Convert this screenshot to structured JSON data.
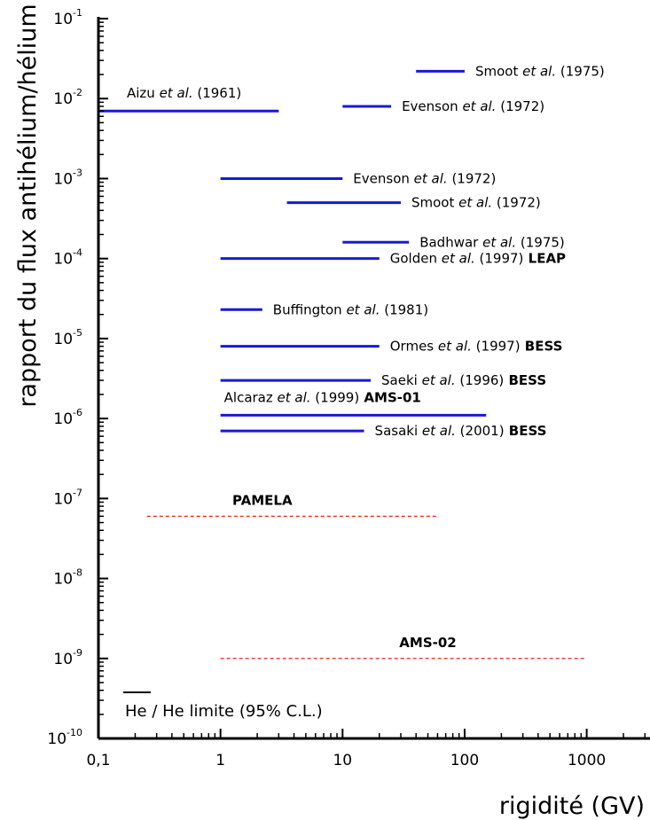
{
  "chart_data": {
    "type": "line",
    "ylabel": "rapport du flux antihélium/hélium",
    "xlabel": "rigidité (GV)",
    "xscale": "log",
    "yscale": "log",
    "xlim": [
      0.1,
      3300
    ],
    "ylim": [
      1e-10,
      0.1
    ],
    "x_ticks": [
      {
        "value": 0.1,
        "label": "0,1"
      },
      {
        "value": 1,
        "label": "1"
      },
      {
        "value": 10,
        "label": "10"
      },
      {
        "value": 100,
        "label": "100"
      },
      {
        "value": 1000,
        "label": "1000"
      }
    ],
    "y_ticks": [
      {
        "value": 1e-10,
        "base": "10",
        "exp": "-10"
      },
      {
        "value": 1e-09,
        "base": "10",
        "exp": "-9"
      },
      {
        "value": 1e-08,
        "base": "10",
        "exp": "-8"
      },
      {
        "value": 1e-07,
        "base": "10",
        "exp": "-7"
      },
      {
        "value": 1e-06,
        "base": "10",
        "exp": "-6"
      },
      {
        "value": 1e-05,
        "base": "10",
        "exp": "-5"
      },
      {
        "value": 0.0001,
        "base": "10",
        "exp": "-4"
      },
      {
        "value": 0.001,
        "base": "10",
        "exp": "-3"
      },
      {
        "value": 0.01,
        "base": "10",
        "exp": "-2"
      },
      {
        "value": 0.1,
        "base": "10",
        "exp": "-1"
      }
    ],
    "limits": [
      {
        "id": "aizu-1961",
        "x_range": [
          0.1,
          3
        ],
        "y": 0.007,
        "label": {
          "author": "Aizu",
          "etal": "et al.",
          "year": "(1961)",
          "exp": "",
          "pos": "above-start"
        }
      },
      {
        "id": "smoot-1975",
        "x_range": [
          40,
          100
        ],
        "y": 0.022,
        "label": {
          "author": "Smoot",
          "etal": "et al.",
          "year": "(1975)",
          "exp": "",
          "pos": "right"
        }
      },
      {
        "id": "evenson-1972-a",
        "x_range": [
          10,
          25
        ],
        "y": 0.008,
        "label": {
          "author": "Evenson",
          "etal": "et al.",
          "year": "(1972)",
          "exp": "",
          "pos": "right"
        }
      },
      {
        "id": "evenson-1972-b",
        "x_range": [
          1,
          10
        ],
        "y": 0.001,
        "label": {
          "author": "Evenson",
          "etal": "et al.",
          "year": "(1972)",
          "exp": "",
          "pos": "right"
        }
      },
      {
        "id": "smoot-1972",
        "x_range": [
          3.5,
          30
        ],
        "y": 0.0005,
        "label": {
          "author": "Smoot",
          "etal": "et al.",
          "year": "(1972)",
          "exp": "",
          "pos": "right"
        }
      },
      {
        "id": "badhwar-1975",
        "x_range": [
          10,
          35
        ],
        "y": 0.00016,
        "label": {
          "author": "Badhwar",
          "etal": "et al.",
          "year": "(1975)",
          "exp": "",
          "pos": "right"
        }
      },
      {
        "id": "golden-1997",
        "x_range": [
          1,
          20
        ],
        "y": 0.0001,
        "label": {
          "author": "Golden",
          "etal": "et al.",
          "year": "(1997)",
          "exp": "LEAP",
          "pos": "right"
        }
      },
      {
        "id": "buffington-1981",
        "x_range": [
          1,
          2.2
        ],
        "y": 2.3e-05,
        "label": {
          "author": "Buffington",
          "etal": "et al.",
          "year": "(1981)",
          "exp": "",
          "pos": "right"
        }
      },
      {
        "id": "ormes-1997",
        "x_range": [
          1,
          20
        ],
        "y": 8e-06,
        "label": {
          "author": "Ormes",
          "etal": "et al.",
          "year": "(1997)",
          "exp": "BESS",
          "pos": "right"
        }
      },
      {
        "id": "saeki-1996",
        "x_range": [
          1,
          17
        ],
        "y": 3e-06,
        "label": {
          "author": "Saeki",
          "etal": "et al.",
          "year": "(1996)",
          "exp": "BESS",
          "pos": "right"
        }
      },
      {
        "id": "alcaraz-1999",
        "x_range": [
          1,
          150
        ],
        "y": 1.1e-06,
        "label": {
          "author": "Alcaraz",
          "etal": "et al.",
          "year": "(1999)",
          "exp": "AMS-01",
          "pos": "above-start"
        }
      },
      {
        "id": "sasaki-2001",
        "x_range": [
          1,
          15
        ],
        "y": 7e-07,
        "label": {
          "author": "Sasaki",
          "etal": "et al.",
          "year": "(2001)",
          "exp": "BESS",
          "pos": "right"
        }
      }
    ],
    "projections": [
      {
        "id": "pamela",
        "name": "PAMELA",
        "x_range": [
          0.25,
          60
        ],
        "y": 6e-08
      },
      {
        "id": "ams-02",
        "name": "AMS-02",
        "x_range": [
          1,
          1000
        ],
        "y": 1e-09
      }
    ],
    "legend": {
      "placement": "bottom-left",
      "label": "He / He limite (95% C.L.)"
    },
    "colors": {
      "limits": "#1818d8",
      "projections": "#ee2222",
      "axes": "#000000"
    },
    "grid": false
  }
}
